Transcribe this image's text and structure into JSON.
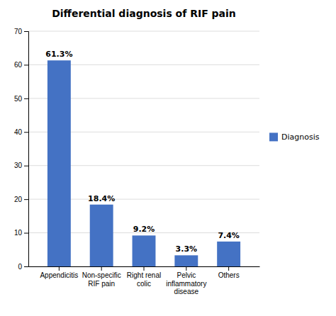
{
  "chart_data": {
    "type": "bar",
    "title": "Differential diagnosis of RIF pain",
    "categories": [
      "Appendicitis",
      "Non-specific\nRIF pain",
      "Right renal\ncolic",
      "Pelvic\ninflammatory\ndisease",
      "Others"
    ],
    "series": [
      {
        "name": "Diagnosis",
        "color": "#4472C4",
        "values": [
          61.3,
          18.4,
          9.2,
          3.3,
          7.4
        ],
        "value_labels": [
          "61.3%",
          "18.4%",
          "9.2%",
          "3.3%",
          "7.4%"
        ]
      }
    ],
    "ylim": [
      0,
      70
    ],
    "yticks": [
      0,
      10,
      20,
      30,
      40,
      50,
      60,
      70
    ],
    "grid": true,
    "legend": "right",
    "data_labels": true
  }
}
